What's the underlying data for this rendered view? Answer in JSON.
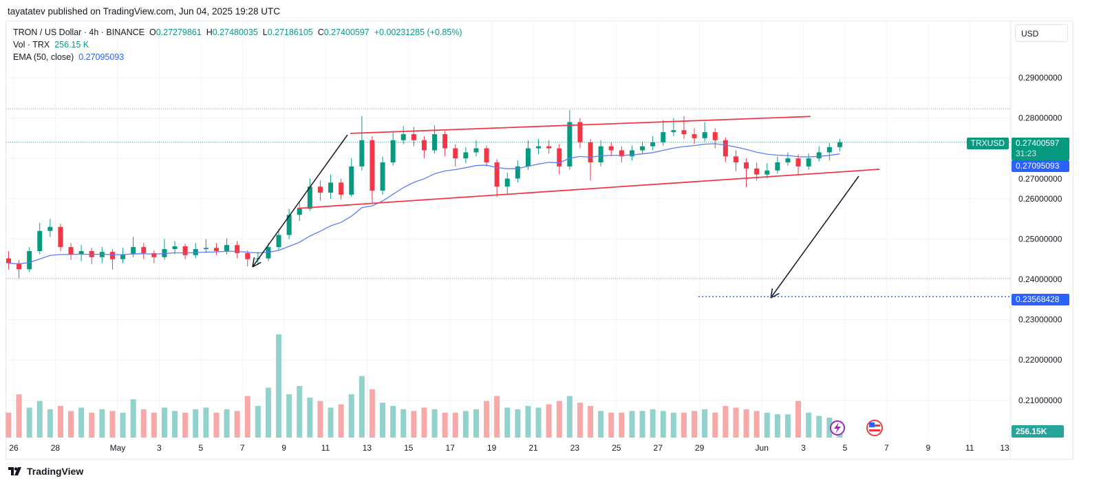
{
  "publisher_line": "tayatatev published on TradingView.com, Jun 04, 2025 19:28 UTC",
  "legend": {
    "symbol": "TRON / US Dollar · 4h · BINANCE",
    "open_label": "O",
    "open": "0.27279861",
    "high_label": "H",
    "high": "0.27480035",
    "low_label": "L",
    "low": "0.27186105",
    "close_label": "C",
    "close": "0.27400597",
    "change": "+0.00231285 (+0.85%)",
    "vol_label": "Vol · TRX",
    "vol": "256.15 K",
    "ema_label": "EMA (50, close)",
    "ema": "0.27095093"
  },
  "currency_button": "USD",
  "tags": {
    "symbol": "TRXUSD",
    "price": "0.27400597",
    "countdown": "31:23",
    "ema": "0.27095093",
    "target": "0.23568428",
    "volume": "256.15K"
  },
  "logo_text": "TradingView",
  "colors": {
    "up": "#089981",
    "down": "#f23645",
    "ema": "#2962ff",
    "channel": "#f23645",
    "target": "#2962ff"
  },
  "chart_data": {
    "type": "candlestick",
    "title": "TRON / US Dollar · 4h · BINANCE",
    "ylim": [
      0.205,
      0.297
    ],
    "y_ticks": [
      "0.29000000",
      "0.28000000",
      "0.27000000",
      "0.26000000",
      "0.25000000",
      "0.24000000",
      "0.23000000",
      "0.22000000",
      "0.21000000"
    ],
    "x_ticks": [
      "26",
      "28",
      "May",
      "3",
      "5",
      "7",
      "9",
      "11",
      "13",
      "15",
      "17",
      "19",
      "21",
      "23",
      "25",
      "27",
      "29",
      "Jun",
      "3",
      "5",
      "7",
      "9",
      "11",
      "13"
    ],
    "x_start": "Apr 25 12:00",
    "bar_interval_hours": 12,
    "ohlc": [
      [
        0.2452,
        0.247,
        0.2425,
        0.244
      ],
      [
        0.244,
        0.2448,
        0.2402,
        0.2425
      ],
      [
        0.2425,
        0.248,
        0.2418,
        0.247
      ],
      [
        0.247,
        0.254,
        0.2462,
        0.252
      ],
      [
        0.252,
        0.255,
        0.2505,
        0.253
      ],
      [
        0.253,
        0.2538,
        0.247,
        0.248
      ],
      [
        0.248,
        0.249,
        0.2448,
        0.2462
      ],
      [
        0.2462,
        0.2485,
        0.2445,
        0.247
      ],
      [
        0.247,
        0.2478,
        0.2438,
        0.2455
      ],
      [
        0.2455,
        0.248,
        0.244,
        0.2468
      ],
      [
        0.2468,
        0.2475,
        0.2425,
        0.245
      ],
      [
        0.245,
        0.2478,
        0.244,
        0.2462
      ],
      [
        0.2462,
        0.2505,
        0.2455,
        0.248
      ],
      [
        0.248,
        0.249,
        0.245,
        0.2465
      ],
      [
        0.2465,
        0.2472,
        0.244,
        0.2455
      ],
      [
        0.2455,
        0.25,
        0.2448,
        0.2475
      ],
      [
        0.2475,
        0.2495,
        0.2462,
        0.2482
      ],
      [
        0.2482,
        0.2488,
        0.245,
        0.246
      ],
      [
        0.246,
        0.249,
        0.2452,
        0.2475
      ],
      [
        0.2475,
        0.25,
        0.2465,
        0.2478
      ],
      [
        0.2478,
        0.249,
        0.246,
        0.247
      ],
      [
        0.247,
        0.2502,
        0.2462,
        0.2485
      ],
      [
        0.2485,
        0.2495,
        0.2452,
        0.2465
      ],
      [
        0.2465,
        0.2472,
        0.2432,
        0.245
      ],
      [
        0.245,
        0.2468,
        0.2435,
        0.2452
      ],
      [
        0.2452,
        0.249,
        0.2445,
        0.248
      ],
      [
        0.248,
        0.2525,
        0.2472,
        0.251
      ],
      [
        0.251,
        0.2575,
        0.25,
        0.256
      ],
      [
        0.256,
        0.259,
        0.2545,
        0.2575
      ],
      [
        0.2575,
        0.265,
        0.257,
        0.263
      ],
      [
        0.263,
        0.2645,
        0.2595,
        0.2615
      ],
      [
        0.2615,
        0.266,
        0.26,
        0.264
      ],
      [
        0.264,
        0.265,
        0.2598,
        0.261
      ],
      [
        0.261,
        0.27,
        0.2605,
        0.268
      ],
      [
        0.268,
        0.2805,
        0.267,
        0.2745
      ],
      [
        0.2745,
        0.2755,
        0.259,
        0.262
      ],
      [
        0.262,
        0.2705,
        0.261,
        0.269
      ],
      [
        0.269,
        0.2765,
        0.2682,
        0.2745
      ],
      [
        0.2745,
        0.278,
        0.2735,
        0.276
      ],
      [
        0.276,
        0.2778,
        0.273,
        0.2745
      ],
      [
        0.2745,
        0.2755,
        0.27,
        0.272
      ],
      [
        0.272,
        0.2782,
        0.2712,
        0.276
      ],
      [
        0.276,
        0.2768,
        0.2705,
        0.2725
      ],
      [
        0.2725,
        0.2735,
        0.268,
        0.27
      ],
      [
        0.27,
        0.2728,
        0.2688,
        0.2715
      ],
      [
        0.2715,
        0.2745,
        0.2705,
        0.2725
      ],
      [
        0.2725,
        0.2732,
        0.268,
        0.269
      ],
      [
        0.269,
        0.2698,
        0.2605,
        0.263
      ],
      [
        0.263,
        0.2665,
        0.2612,
        0.265
      ],
      [
        0.265,
        0.2695,
        0.264,
        0.268
      ],
      [
        0.268,
        0.2745,
        0.2672,
        0.2725
      ],
      [
        0.2725,
        0.2748,
        0.271,
        0.273
      ],
      [
        0.273,
        0.2745,
        0.2712,
        0.2725
      ],
      [
        0.2725,
        0.2735,
        0.266,
        0.268
      ],
      [
        0.268,
        0.282,
        0.2672,
        0.279
      ],
      [
        0.279,
        0.28,
        0.2725,
        0.274
      ],
      [
        0.274,
        0.2748,
        0.2645,
        0.269
      ],
      [
        0.269,
        0.2745,
        0.268,
        0.273
      ],
      [
        0.273,
        0.274,
        0.2705,
        0.272
      ],
      [
        0.272,
        0.273,
        0.269,
        0.2705
      ],
      [
        0.2705,
        0.2732,
        0.2695,
        0.272
      ],
      [
        0.272,
        0.2742,
        0.271,
        0.273
      ],
      [
        0.273,
        0.2755,
        0.272,
        0.274
      ],
      [
        0.274,
        0.2795,
        0.2732,
        0.2765
      ],
      [
        0.2765,
        0.28,
        0.2755,
        0.277
      ],
      [
        0.277,
        0.2805,
        0.2748,
        0.276
      ],
      [
        0.276,
        0.2775,
        0.2735,
        0.275
      ],
      [
        0.275,
        0.279,
        0.2742,
        0.2765
      ],
      [
        0.2765,
        0.2775,
        0.2725,
        0.2745
      ],
      [
        0.2745,
        0.2752,
        0.269,
        0.2705
      ],
      [
        0.2705,
        0.272,
        0.2668,
        0.269
      ],
      [
        0.269,
        0.27,
        0.2628,
        0.2675
      ],
      [
        0.2675,
        0.269,
        0.2645,
        0.266
      ],
      [
        0.266,
        0.2688,
        0.265,
        0.267
      ],
      [
        0.267,
        0.2705,
        0.2662,
        0.269
      ],
      [
        0.269,
        0.2715,
        0.2682,
        0.27
      ],
      [
        0.27,
        0.271,
        0.266,
        0.268
      ],
      [
        0.268,
        0.2712,
        0.2672,
        0.27
      ],
      [
        0.27,
        0.273,
        0.2692,
        0.2715
      ],
      [
        0.2715,
        0.2738,
        0.2695,
        0.2728
      ],
      [
        0.2728,
        0.2748,
        0.2718,
        0.274
      ]
    ],
    "volume": [
      1500,
      2600,
      1800,
      2200,
      1700,
      1900,
      1600,
      1800,
      1500,
      1700,
      1600,
      1500,
      2300,
      1700,
      1500,
      1800,
      1600,
      1500,
      1700,
      1800,
      1500,
      1700,
      1600,
      2500,
      1900,
      3000,
      6200,
      2600,
      3100,
      2400,
      2200,
      1800,
      2000,
      2600,
      3700,
      2900,
      2100,
      1900,
      1700,
      1600,
      1800,
      1700,
      1500,
      1500,
      1600,
      1700,
      2200,
      2500,
      1800,
      1700,
      1900,
      1800,
      2000,
      2200,
      2500,
      2100,
      1900,
      1600,
      1500,
      1500,
      1600,
      1600,
      1700,
      1600,
      1500,
      1500,
      1600,
      1700,
      1500,
      1900,
      1800,
      1700,
      1600,
      1500,
      1400,
      1400,
      2200,
      1500,
      1300,
      1200,
      800
    ],
    "ema_period_bars": 17,
    "annotations": {
      "channel_upper": [
        [
          "May 12 12:00",
          0.2762
        ],
        [
          "Jun 3 12:00",
          0.2804
        ]
      ],
      "channel_lower": [
        [
          "May 10 00:00",
          0.2576
        ],
        [
          "Jun 6 12:00",
          0.2673
        ]
      ],
      "target_line": 0.23568428,
      "range_high": 0.2823,
      "range_low": 0.2402
    }
  }
}
